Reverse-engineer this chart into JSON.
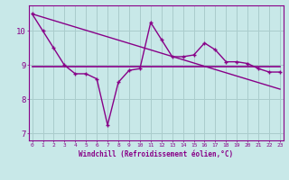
{
  "xlabel": "Windchill (Refroidissement éolien,°C)",
  "background_color": "#c8e8e8",
  "grid_color": "#aacccc",
  "line_color": "#880088",
  "x_hours": [
    0,
    1,
    2,
    3,
    4,
    5,
    6,
    7,
    8,
    9,
    10,
    11,
    12,
    13,
    14,
    15,
    16,
    17,
    18,
    19,
    20,
    21,
    22,
    23
  ],
  "series_zigzag": [
    10.5,
    10.0,
    9.5,
    9.0,
    8.75,
    8.75,
    8.6,
    7.25,
    8.5,
    8.85,
    8.9,
    10.25,
    9.75,
    9.25,
    9.25,
    9.3,
    9.65,
    9.45,
    9.1,
    9.1,
    9.05,
    8.9,
    8.8,
    8.8
  ],
  "series_flat": [
    8.95,
    8.95,
    8.95,
    8.95,
    8.95,
    8.95,
    8.95,
    8.95,
    8.95,
    8.95,
    8.95,
    8.95,
    8.95,
    8.95,
    8.95,
    8.95,
    8.95,
    8.95,
    8.95,
    8.95,
    8.95,
    8.95,
    8.95,
    8.95
  ],
  "series_trend_x": [
    0,
    23
  ],
  "series_trend_y": [
    10.5,
    8.3
  ],
  "ylim": [
    6.8,
    10.75
  ],
  "yticks": [
    7,
    8,
    9,
    10
  ],
  "xticks": [
    0,
    1,
    2,
    3,
    4,
    5,
    6,
    7,
    8,
    9,
    10,
    11,
    12,
    13,
    14,
    15,
    16,
    17,
    18,
    19,
    20,
    21,
    22,
    23
  ],
  "xlim": [
    -0.3,
    23.3
  ]
}
